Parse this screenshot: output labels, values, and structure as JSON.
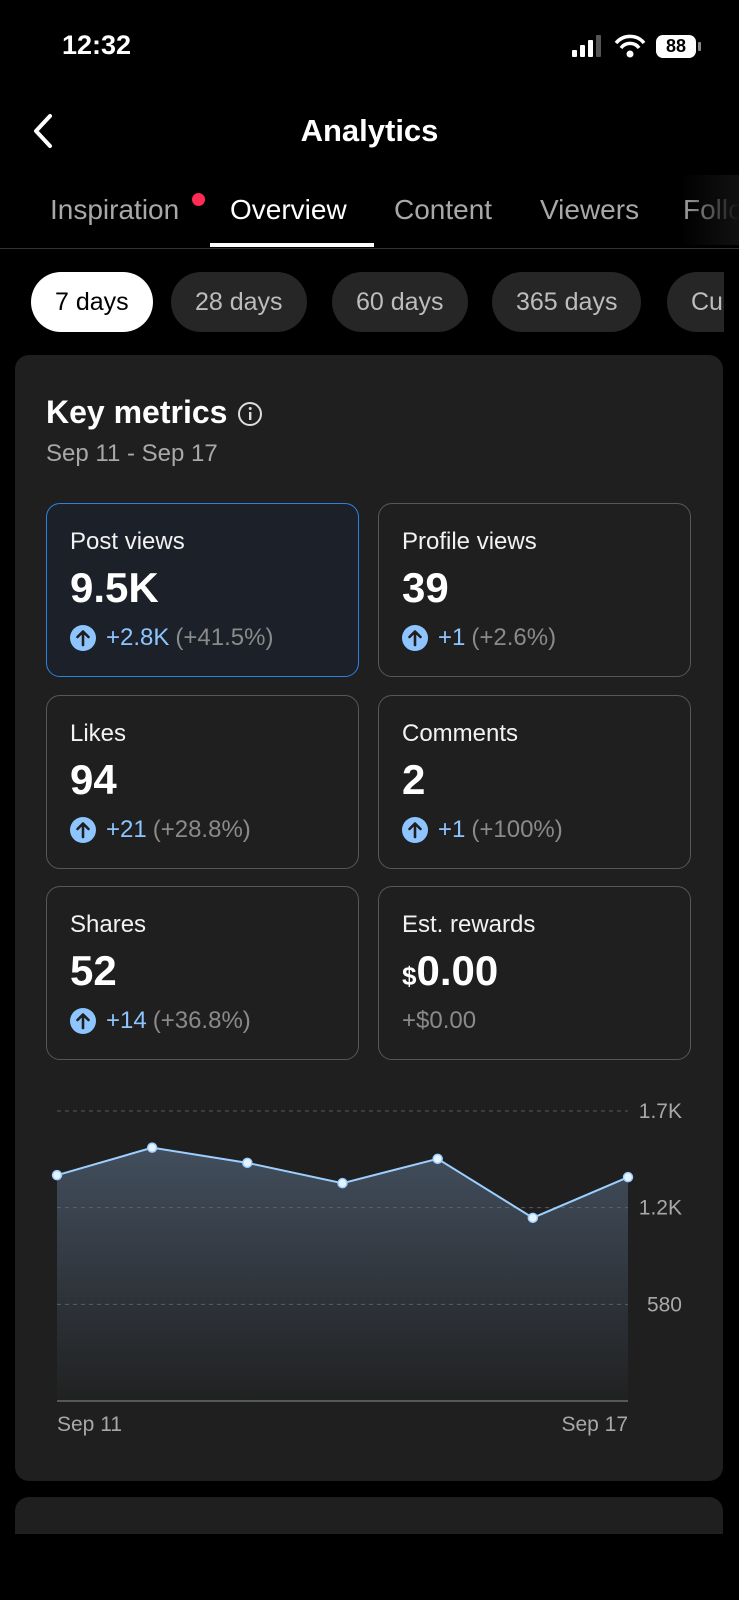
{
  "status_bar": {
    "time": "12:32",
    "battery": "88"
  },
  "header": {
    "title": "Analytics"
  },
  "tabs": {
    "items": [
      "Inspiration",
      "Overview",
      "Content",
      "Viewers",
      "Followers"
    ],
    "active": 1
  },
  "periods": {
    "items": [
      "7 days",
      "28 days",
      "60 days",
      "365 days",
      "Custom"
    ],
    "active": 0
  },
  "key_metrics": {
    "title": "Key metrics",
    "date_range": "Sep 11 - Sep 17",
    "metrics": [
      {
        "label": "Post views",
        "value": "9.5K",
        "change": "+2.8K",
        "change_pct": "(+41.5%)"
      },
      {
        "label": "Profile views",
        "value": "39",
        "change": "+1",
        "change_pct": "(+2.6%)"
      },
      {
        "label": "Likes",
        "value": "94",
        "change": "+21",
        "change_pct": "(+28.8%)"
      },
      {
        "label": "Comments",
        "value": "2",
        "change": "+1",
        "change_pct": "(+100%)"
      },
      {
        "label": "Shares",
        "value": "52",
        "change": "+14",
        "change_pct": "(+36.8%)"
      },
      {
        "label": "Est. rewards",
        "currency": "$",
        "value": "0.00",
        "change": "+$0.00"
      }
    ]
  },
  "chart_data": {
    "type": "line",
    "categories": [
      "Sep 11",
      null,
      null,
      null,
      null,
      null,
      "Sep 17"
    ],
    "series": [
      {
        "name": "Post views",
        "color": "#9ccfff",
        "values": [
          1355,
          1520,
          1429,
          1307,
          1453,
          1099,
          1343
        ]
      }
    ],
    "ylim": [
      0,
      1740
    ],
    "yticks": [
      580,
      {
        "value": 1160,
        "label": "1.2K"
      },
      {
        "value": 1740,
        "label": "1.7K"
      }
    ],
    "grid": true,
    "area": true
  }
}
